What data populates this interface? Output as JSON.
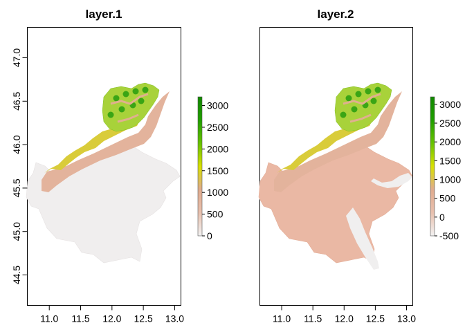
{
  "chart_data": [
    {
      "type": "heatmap",
      "title": "layer.1",
      "xlim": [
        10.65,
        13.1
      ],
      "ylim": [
        44.15,
        47.35
      ],
      "x_ticks": [
        "11.0",
        "11.5",
        "12.0",
        "12.5",
        "13.0"
      ],
      "y_ticks": [
        "44.5",
        "45.0",
        "45.5",
        "46.0",
        "46.5",
        "47.0"
      ],
      "legend": {
        "min": 0,
        "max": 3200,
        "ticks": [
          "0",
          "500",
          "1000",
          "1500",
          "2000",
          "2500",
          "3000"
        ],
        "colors": [
          "#f2f2f2",
          "#e8c0ae",
          "#e0ab8e",
          "#d8e000",
          "#66c200",
          "#1f9e00",
          "#108800"
        ]
      }
    },
    {
      "type": "heatmap",
      "title": "layer.2",
      "xlim": [
        10.65,
        13.1
      ],
      "ylim": [
        44.15,
        47.35
      ],
      "x_ticks": [
        "11.0",
        "11.5",
        "12.0",
        "12.5",
        "13.0"
      ],
      "y_ticks": [],
      "legend": {
        "min": -500,
        "max": 3200,
        "ticks": [
          "-500",
          "0",
          "500",
          "1000",
          "1500",
          "2000",
          "2500",
          "3000"
        ],
        "colors": [
          "#f2f2f2",
          "#e8c0ae",
          "#e0ab8e",
          "#d8e000",
          "#66c200",
          "#1f9e00",
          "#108800"
        ]
      }
    }
  ]
}
